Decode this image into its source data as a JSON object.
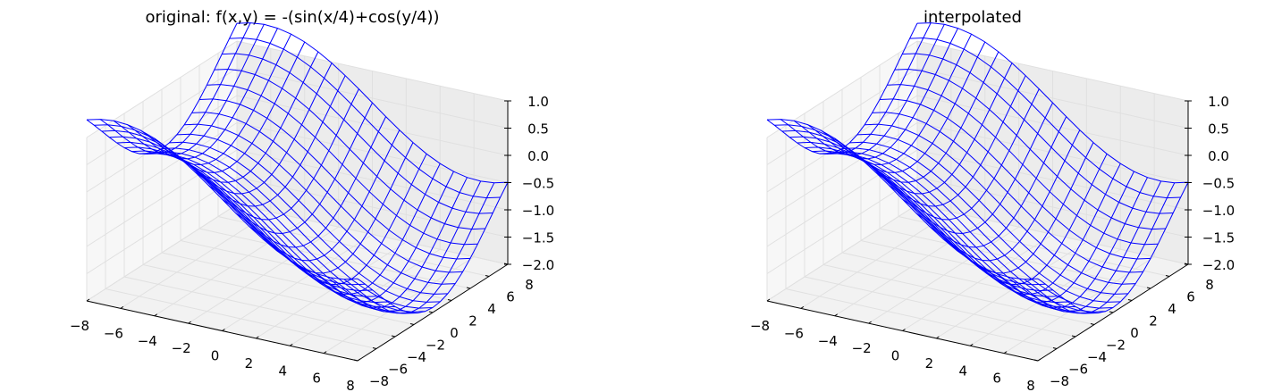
{
  "chart_data": [
    {
      "type": "surface",
      "style": "wireframe",
      "title": "original: f(x,y) = -(sin(x/4)+cos(y/4))",
      "function": "-(sin(x/4)+cos(y/4))",
      "grid": true,
      "wire_color": "#0000ff",
      "xlim": [
        -8,
        8
      ],
      "ylim": [
        -8,
        8
      ],
      "zlim": [
        -2.0,
        1.0
      ],
      "x_ticks": [
        "−8",
        "−6",
        "−4",
        "−2",
        "0",
        "2",
        "4",
        "6",
        "8"
      ],
      "y_ticks": [
        "−8",
        "−6",
        "−4",
        "−2",
        "0",
        "2",
        "4",
        "6",
        "8"
      ],
      "z_ticks": [
        "−2.0",
        "−1.5",
        "−1.0",
        "−0.5",
        "0.0",
        "0.5",
        "1.0"
      ],
      "x_values": [
        -8,
        -7.2,
        -6.4,
        -5.6,
        -4.8,
        -4,
        -3.2,
        -2.4,
        -1.6,
        -0.8,
        0,
        0.8,
        1.6,
        2.4,
        3.2,
        4,
        4.8,
        5.6,
        6.4,
        7.2,
        8
      ],
      "y_values": [
        -8,
        -7.2,
        -6.4,
        -5.6,
        -4.8,
        -4,
        -3.2,
        -2.4,
        -1.6,
        -0.8,
        0,
        0.8,
        1.6,
        2.4,
        3.2,
        4,
        4.8,
        5.6,
        6.4,
        7.2,
        8
      ]
    },
    {
      "type": "surface",
      "style": "wireframe",
      "title": "interpolated",
      "function": "-(sin(x/4)+cos(y/4))",
      "grid": true,
      "wire_color": "#0000ff",
      "xlim": [
        -8,
        8
      ],
      "ylim": [
        -8,
        8
      ],
      "zlim": [
        -2.0,
        1.0
      ],
      "x_ticks": [
        "−8",
        "−6",
        "−4",
        "−2",
        "0",
        "2",
        "4",
        "6",
        "8"
      ],
      "y_ticks": [
        "−8",
        "−6",
        "−4",
        "−2",
        "0",
        "2",
        "4",
        "6",
        "8"
      ],
      "z_ticks": [
        "−2.0",
        "−1.5",
        "−1.0",
        "−0.5",
        "0.0",
        "0.5",
        "1.0"
      ],
      "x_values": [
        -8,
        -7.2,
        -6.4,
        -5.6,
        -4.8,
        -4,
        -3.2,
        -2.4,
        -1.6,
        -0.8,
        0,
        0.8,
        1.6,
        2.4,
        3.2,
        4,
        4.8,
        5.6,
        6.4,
        7.2,
        8
      ],
      "y_values": [
        -8,
        -7.2,
        -6.4,
        -5.6,
        -4.8,
        -4,
        -3.2,
        -2.4,
        -1.6,
        -0.8,
        0,
        0.8,
        1.6,
        2.4,
        3.2,
        4,
        4.8,
        5.6,
        6.4,
        7.2,
        8
      ]
    }
  ]
}
